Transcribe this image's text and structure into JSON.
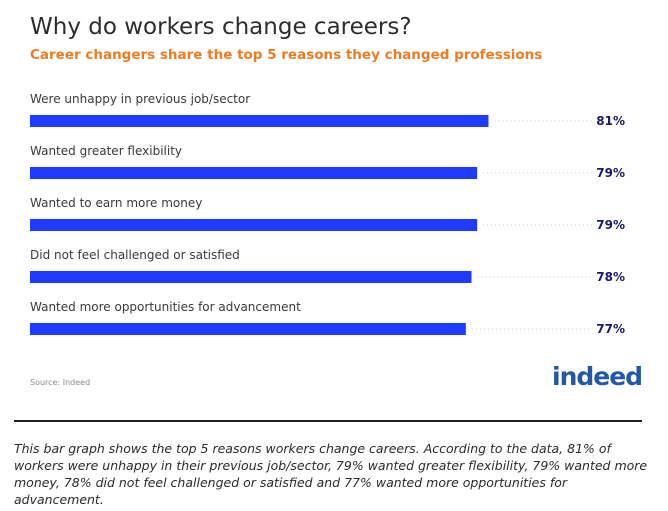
{
  "chart_data": {
    "type": "bar",
    "orientation": "horizontal",
    "title": "Why do workers change careers?",
    "subtitle": "Career changers share the top 5 reasons they changed professions",
    "categories": [
      "Were unhappy in previous job/sector",
      "Wanted greater flexibility",
      "Wanted to earn more money",
      "Did not feel challenged or satisfied",
      "Wanted more opportunities for advancement"
    ],
    "values": [
      81,
      79,
      79,
      78,
      77
    ],
    "value_labels": [
      "81%",
      "79%",
      "79%",
      "78%",
      "77%"
    ],
    "xlim": [
      0,
      100
    ],
    "bar_color": "#1f3bff",
    "grid": false,
    "source": "Source: Indeed"
  },
  "logo_text": "indeed",
  "caption": "This bar graph shows the top 5 reasons workers change careers. According to the data, 81% of workers were unhappy in their previous job/sector, 79% wanted greater flexibility, 79% wanted more money, 78% did not feel challenged or satisfied and 77% wanted more opportunities for advancement."
}
